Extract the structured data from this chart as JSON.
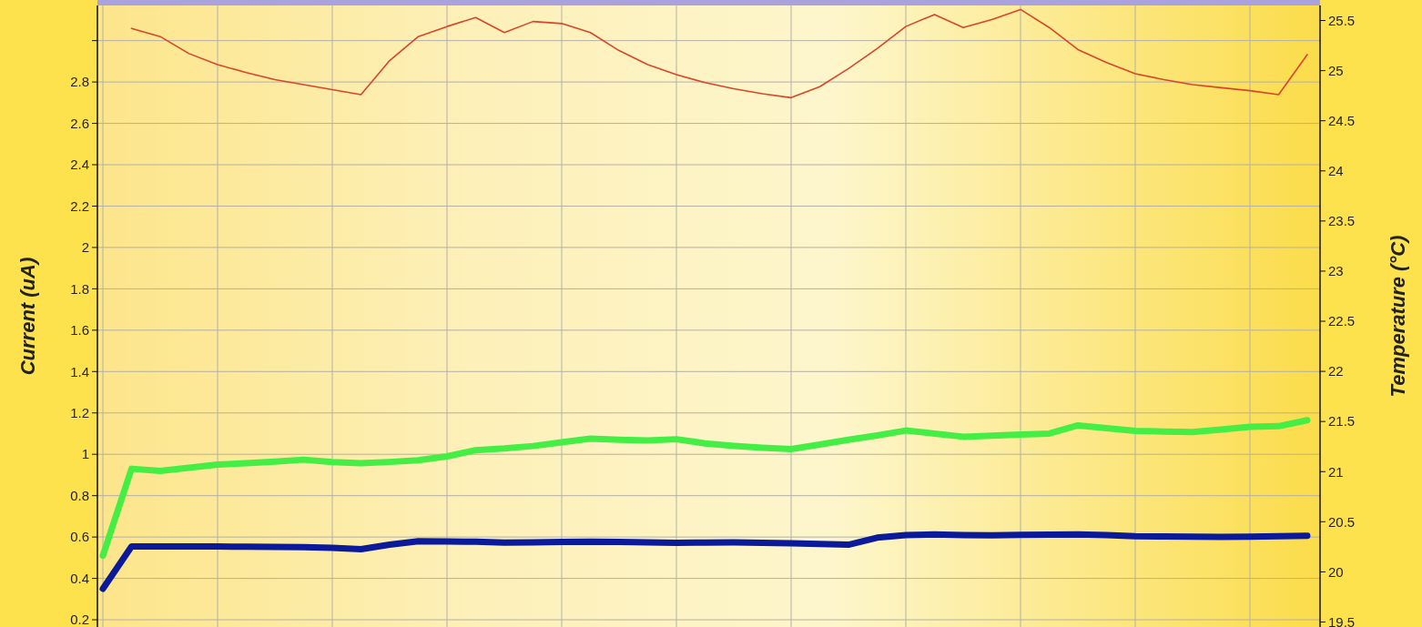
{
  "chart_data": {
    "type": "line",
    "ylabel": "Current (uA)",
    "y2label": "Temperature (°C)",
    "categories": [
      null,
      null,
      null,
      null,
      null,
      null,
      null,
      null,
      null,
      null,
      null,
      null,
      null,
      null,
      null,
      null,
      null,
      null,
      null,
      null,
      null,
      null,
      null,
      null,
      null,
      null,
      null,
      null,
      null,
      null,
      null,
      null,
      null,
      null,
      null,
      null,
      null,
      null,
      null,
      null,
      null,
      null,
      null
    ],
    "ylim": [
      0.165,
      3.17
    ],
    "yticks": [
      0.2,
      0.4,
      0.6,
      0.8,
      1,
      1.2,
      1.4,
      1.6,
      1.8,
      2,
      2.2,
      2.4,
      2.6,
      2.8,
      {
        "value": 3,
        "label": null
      }
    ],
    "y2lim": [
      19.45,
      25.65
    ],
    "y2ticks": [
      19.5,
      20,
      20.5,
      21,
      21.5,
      22,
      22.5,
      23,
      23.5,
      24,
      24.5,
      25,
      25.5
    ],
    "grid": true,
    "tick_labels": "y",
    "series": [
      {
        "axis": "y2",
        "color": "#d8452a",
        "values": [
          null,
          25.42,
          25.34,
          25.17,
          25.06,
          24.98,
          24.91,
          24.86,
          24.81,
          24.76,
          25.1,
          25.34,
          25.44,
          25.53,
          25.38,
          25.49,
          25.47,
          25.38,
          25.2,
          25.06,
          24.96,
          24.88,
          24.82,
          24.77,
          24.73,
          24.84,
          25.02,
          25.22,
          25.44,
          25.56,
          25.43,
          25.51,
          25.61,
          25.43,
          25.21,
          25.08,
          24.97,
          24.91,
          24.86,
          24.83,
          24.8,
          24.76,
          25.16
        ]
      },
      {
        "color": "#44ee44",
        "values": [
          0.51,
          0.93,
          0.92,
          0.935,
          0.95,
          0.957,
          0.965,
          0.974,
          0.962,
          0.957,
          0.963,
          0.971,
          0.99,
          1.02,
          1.028,
          1.04,
          1.058,
          1.076,
          1.07,
          1.067,
          1.073,
          1.053,
          1.041,
          1.032,
          1.025,
          1.047,
          1.07,
          1.091,
          1.115,
          1.1,
          1.085,
          1.09,
          1.095,
          1.1,
          1.14,
          1.126,
          1.113,
          1.11,
          1.108,
          1.12,
          1.133,
          1.136,
          1.165
        ]
      },
      {
        "color": "#0a1a9a",
        "values": [
          0.35,
          0.554,
          0.554,
          0.554,
          0.554,
          0.553,
          0.552,
          0.551,
          0.548,
          0.541,
          0.563,
          0.58,
          0.579,
          0.577,
          0.573,
          0.574,
          0.576,
          0.578,
          0.576,
          0.574,
          0.572,
          0.573,
          0.574,
          0.572,
          0.57,
          0.566,
          0.563,
          0.597,
          0.609,
          0.613,
          0.609,
          0.608,
          0.61,
          0.612,
          0.613,
          0.609,
          0.604,
          0.603,
          0.602,
          0.601,
          0.602,
          0.604,
          0.606
        ]
      }
    ]
  }
}
